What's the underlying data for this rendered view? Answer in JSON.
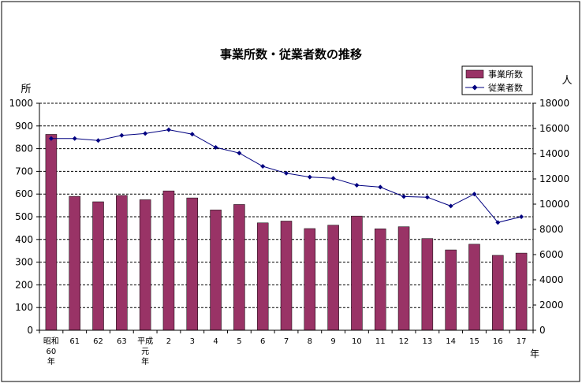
{
  "chart_data": {
    "type": "bar",
    "title": "事業所数・従業者数の推移",
    "left_unit": "所",
    "right_unit": "人",
    "x_unit": "年",
    "categories": [
      [
        "昭和",
        "60",
        "年"
      ],
      [
        "61"
      ],
      [
        "62"
      ],
      [
        "63"
      ],
      [
        "平成",
        "元",
        "年"
      ],
      [
        "2"
      ],
      [
        "3"
      ],
      [
        "4"
      ],
      [
        "5"
      ],
      [
        "6"
      ],
      [
        "7"
      ],
      [
        "8"
      ],
      [
        "9"
      ],
      [
        "10"
      ],
      [
        "11"
      ],
      [
        "12"
      ],
      [
        "13"
      ],
      [
        "14"
      ],
      [
        "15"
      ],
      [
        "16"
      ],
      [
        "17"
      ]
    ],
    "series": [
      {
        "name": "事業所数",
        "type": "bar",
        "axis": "left",
        "color": "#993366",
        "values": [
          863,
          590,
          566,
          594,
          575,
          614,
          583,
          530,
          554,
          473,
          481,
          448,
          463,
          503,
          447,
          456,
          404,
          354,
          379,
          330,
          340
        ]
      },
      {
        "name": "従業者数",
        "type": "line",
        "axis": "right",
        "color": "#000080",
        "values": [
          15200,
          15200,
          15050,
          15450,
          15600,
          15900,
          15550,
          14500,
          14050,
          13000,
          12450,
          12150,
          12050,
          11500,
          11350,
          10600,
          10550,
          9850,
          10800,
          8550,
          9000
        ]
      }
    ],
    "ylim_left": [
      0,
      1000
    ],
    "yticks_left": [
      "0",
      "100",
      "200",
      "300",
      "400",
      "500",
      "600",
      "700",
      "800",
      "900",
      "1000"
    ],
    "ylim_right": [
      0,
      18000
    ],
    "yticks_right": [
      "0",
      "2000",
      "4000",
      "6000",
      "8000",
      "10000",
      "12000",
      "14000",
      "16000",
      "18000"
    ],
    "grid": true,
    "legend_position": "top-right"
  }
}
